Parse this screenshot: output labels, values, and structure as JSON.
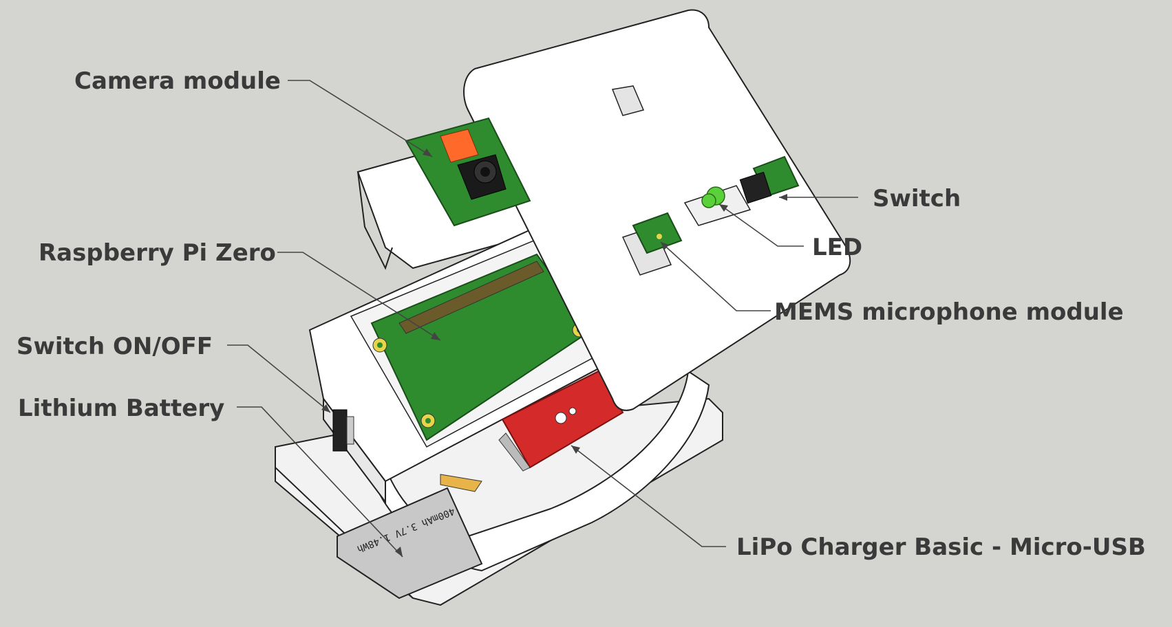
{
  "labels": {
    "camera_module": "Camera module",
    "raspberry_pi_zero": "Raspberry Pi Zero",
    "switch_on_off": "Switch ON/OFF",
    "lithium_battery": "Lithium Battery",
    "switch": "Switch",
    "led": "LED",
    "mems_microphone": "MEMS microphone module",
    "lipo_charger": "LiPo Charger Basic - Micro-USB"
  },
  "battery_print": "400mAh 3.7V 1.48Wh",
  "colors": {
    "background": "#d4d4d0",
    "enclosure": "#ffffff",
    "pcb_green": "#2e8b2e",
    "charger_red": "#d42a2a",
    "camera_sensor": "#ff6a2a",
    "led_green": "#5ad13a",
    "battery_gray": "#c8c8c8"
  }
}
